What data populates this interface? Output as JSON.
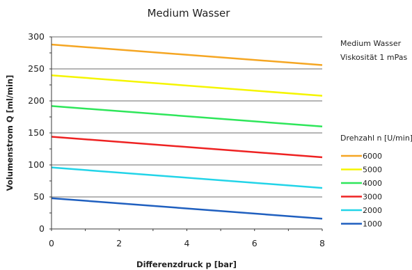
{
  "chart_data": {
    "type": "line",
    "title": "Medium Wasser",
    "xlabel": "Differenzdruck p [bar]",
    "ylabel": "Volumenstrom Q [ml/min]",
    "xlim": [
      0,
      8
    ],
    "ylim": [
      0,
      300
    ],
    "xticks": [
      0,
      2,
      4,
      6,
      8
    ],
    "yticks": [
      0,
      50,
      100,
      150,
      200,
      250,
      300
    ],
    "grid": "horizontal",
    "annotations": [
      "Medium Wasser",
      "Viskosität 1 mPas"
    ],
    "legend_title": "Drehzahl n [U/min]",
    "legend_position": "right",
    "series": [
      {
        "name": "6000",
        "color": "#F5A623",
        "x": [
          0,
          8
        ],
        "values": [
          288,
          256
        ]
      },
      {
        "name": "5000",
        "color": "#F5F500",
        "x": [
          0,
          8
        ],
        "values": [
          240,
          208
        ]
      },
      {
        "name": "4000",
        "color": "#2EE65A",
        "x": [
          0,
          8
        ],
        "values": [
          192,
          160
        ]
      },
      {
        "name": "3000",
        "color": "#EE2222",
        "x": [
          0,
          8
        ],
        "values": [
          144,
          112
        ]
      },
      {
        "name": "2000",
        "color": "#22D4E8",
        "x": [
          0,
          8
        ],
        "values": [
          96,
          64
        ]
      },
      {
        "name": "1000",
        "color": "#1F5FBF",
        "x": [
          0,
          8
        ],
        "values": [
          48,
          16
        ]
      }
    ]
  }
}
